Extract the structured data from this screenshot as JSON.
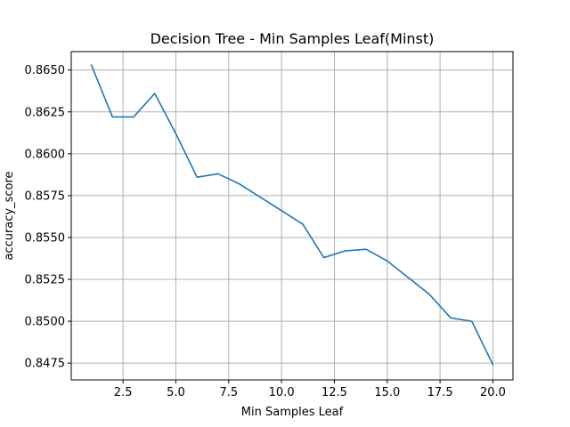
{
  "chart_data": {
    "type": "line",
    "title": "Decision Tree - Min Samples Leaf(Minst)",
    "xlabel": "Min Samples Leaf",
    "ylabel": "accuracy_score",
    "xlim": [
      0.05,
      20.95
    ],
    "ylim": [
      0.8465,
      0.8661
    ],
    "x_ticks": [
      2.5,
      5.0,
      7.5,
      10.0,
      12.5,
      15.0,
      17.5,
      20.0
    ],
    "x_tick_labels": [
      "2.5",
      "5.0",
      "7.5",
      "10.0",
      "12.5",
      "15.0",
      "17.5",
      "20.0"
    ],
    "y_ticks": [
      0.8475,
      0.85,
      0.8525,
      0.855,
      0.8575,
      0.86,
      0.8625,
      0.865
    ],
    "y_tick_labels": [
      "0.8475",
      "0.8500",
      "0.8525",
      "0.8550",
      "0.8575",
      "0.8600",
      "0.8625",
      "0.8650"
    ],
    "grid": true,
    "series": [
      {
        "color": "#1f77b4",
        "x": [
          1,
          2,
          3,
          4,
          5,
          6,
          7,
          8,
          9,
          10,
          11,
          12,
          13,
          14,
          15,
          16,
          17,
          18,
          19,
          20
        ],
        "values": [
          0.8653,
          0.8622,
          0.8622,
          0.8636,
          0.8612,
          0.8586,
          0.8588,
          0.8582,
          0.8574,
          0.8566,
          0.8558,
          0.8538,
          0.8542,
          0.8543,
          0.8536,
          0.8526,
          0.8516,
          0.8502,
          0.85,
          0.8474
        ]
      }
    ]
  }
}
